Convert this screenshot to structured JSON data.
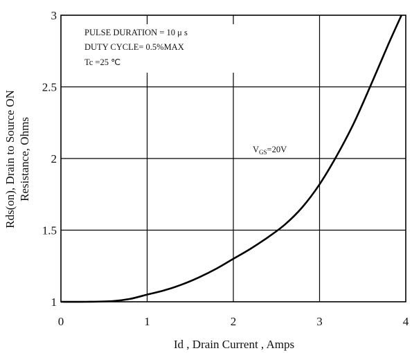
{
  "chart_data": {
    "type": "line",
    "xlabel": "Id , Drain Current , Amps",
    "ylabel_line1": "Rds(on), Drain to Source ON",
    "ylabel_line2": "Resistance, Ohms",
    "xlim": [
      0,
      4
    ],
    "ylim": [
      1,
      3
    ],
    "x_ticks": [
      "0",
      "1",
      "2",
      "3",
      "4"
    ],
    "y_ticks": [
      "1",
      "1.5",
      "2",
      "2.5",
      "3"
    ],
    "grid": true,
    "notes": [
      "PULSE    DURATION = 10 μ s",
      "DUTY    CYCLE= 0.5%MAX",
      "Tc =25  ℃"
    ],
    "series": [
      {
        "name_main": "V",
        "name_sub": "GS",
        "name_rest": "=20V",
        "x": [
          0,
          0.3,
          0.6,
          0.8,
          1.0,
          1.2,
          1.4,
          1.6,
          1.8,
          2.0,
          2.2,
          2.4,
          2.6,
          2.8,
          3.0,
          3.2,
          3.4,
          3.6,
          3.8,
          3.95
        ],
        "y": [
          1.0,
          1.0,
          1.005,
          1.02,
          1.05,
          1.08,
          1.12,
          1.17,
          1.23,
          1.3,
          1.37,
          1.45,
          1.54,
          1.66,
          1.82,
          2.02,
          2.25,
          2.52,
          2.8,
          3.0
        ]
      }
    ]
  }
}
